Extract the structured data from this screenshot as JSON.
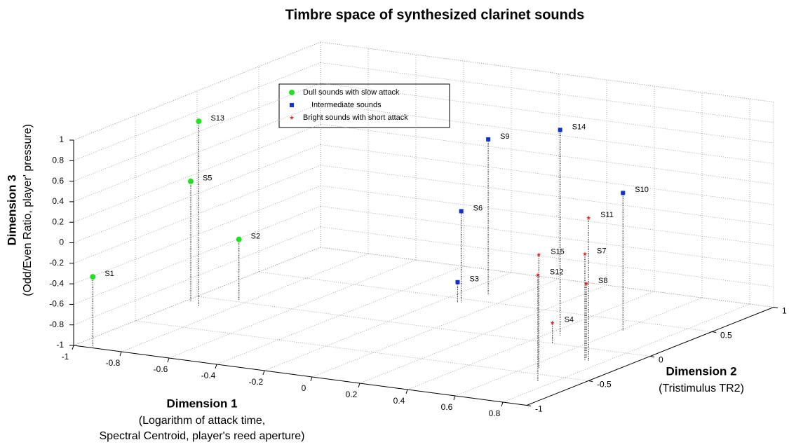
{
  "chart_data": {
    "type": "scatter3d",
    "title": "Timbre space of synthesized clarinet sounds",
    "xlabel": "Dimension 1",
    "xlabel_note": [
      "(Logarithm of attack time,",
      "Spectral Centroid, player's reed aperture)"
    ],
    "ylabel": "Dimension 2",
    "ylabel_note": [
      "(Tristimulus TR2)"
    ],
    "zlabel": "Dimension 3",
    "zlabel_note": [
      "(Odd/Even Ratio, player' pressure)"
    ],
    "xlim": [
      -1,
      0.9
    ],
    "xticks": [
      -1,
      -0.8,
      -0.6,
      -0.4,
      -0.2,
      0,
      0.2,
      0.4,
      0.6,
      0.8
    ],
    "ylim": [
      -1,
      1
    ],
    "yticks": [
      -1,
      -0.5,
      0,
      0.5,
      1
    ],
    "zlim": [
      -1,
      1
    ],
    "zticks": [
      -1,
      -0.8,
      -0.6,
      -0.4,
      -0.2,
      0,
      0.2,
      0.4,
      0.6,
      0.8,
      1
    ],
    "grid": true,
    "stems": true,
    "series": [
      {
        "name": "Dull sounds with slow attack",
        "color": "#22e022",
        "marker": "circle",
        "labels": [
          "S1",
          "S13",
          "S5",
          "S2"
        ],
        "x": [
          -0.93,
          -0.91,
          -0.98,
          -0.84
        ],
        "y": [
          -0.98,
          -0.16,
          -0.09,
          0.03
        ],
        "z": [
          -0.32,
          0.81,
          0.17,
          -0.41
        ]
      },
      {
        "name": "Intermediate sounds",
        "color": "#1030d0",
        "marker": "square",
        "labels": [
          "S6",
          "S3",
          "S9",
          "S14",
          "S10"
        ],
        "x": [
          -0.12,
          -0.13,
          -0.1,
          0.45,
          0.61
        ],
        "y": [
          0.44,
          0.43,
          0.62,
          0.14,
          0.34
        ],
        "z": [
          -0.11,
          -0.8,
          0.51,
          1.0,
          0.34
        ]
      },
      {
        "name": "Bright sounds with short attack",
        "color": "#e02020",
        "marker": "star",
        "labels": [
          "S11",
          "S7",
          "S8",
          "S15",
          "S12",
          "S4"
        ],
        "x": [
          0.74,
          0.73,
          0.71,
          0.64,
          0.75,
          0.49
        ],
        "y": [
          -0.19,
          -0.2,
          -0.15,
          -0.4,
          -0.62,
          0.0
        ],
        "z": [
          0.39,
          0.04,
          -0.28,
          0.1,
          0.04,
          -0.8
        ]
      }
    ]
  }
}
